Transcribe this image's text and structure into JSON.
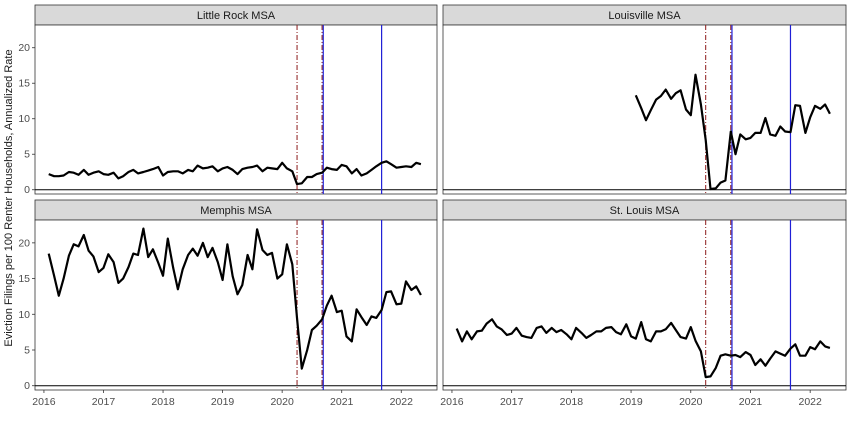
{
  "chart_data": {
    "type": "line",
    "ylabel": "Eviction Filings per 100 Renter Households, Annualized Rate",
    "xlabel": "",
    "xlim": [
      2015.85,
      2022.6
    ],
    "ylim": [
      -0.6,
      23.2
    ],
    "x_ticks": [
      2016,
      2017,
      2018,
      2019,
      2020,
      2021,
      2022
    ],
    "x_tick_labels": [
      "2016",
      "2017",
      "2018",
      "2019",
      "2020",
      "2021",
      "2022"
    ],
    "y_ticks": [
      0,
      5,
      10,
      15,
      20
    ],
    "y_tick_labels": [
      "0",
      "5",
      "10",
      "15",
      "20"
    ],
    "reference_lines": {
      "red_dashdot": [
        2020.25,
        2020.67
      ],
      "blue_solid": [
        2020.69,
        2021.67
      ]
    },
    "colors": {
      "series": "#000000",
      "red_line": "#8b1a1a",
      "blue_line": "#1f1fd6",
      "strip": "#d9d9d9"
    },
    "panels": [
      {
        "title": "Little Rock MSA",
        "x": [
          2016.08,
          2016.17,
          2016.25,
          2016.33,
          2016.42,
          2016.5,
          2016.58,
          2016.67,
          2016.75,
          2016.83,
          2016.92,
          2017.0,
          2017.08,
          2017.17,
          2017.25,
          2017.33,
          2017.42,
          2017.5,
          2017.58,
          2017.67,
          2017.75,
          2017.83,
          2017.92,
          2018.0,
          2018.08,
          2018.17,
          2018.25,
          2018.33,
          2018.42,
          2018.5,
          2018.58,
          2018.67,
          2018.75,
          2018.83,
          2018.92,
          2019.0,
          2019.08,
          2019.17,
          2019.25,
          2019.33,
          2019.42,
          2019.5,
          2019.58,
          2019.67,
          2019.75,
          2019.83,
          2019.92,
          2020.0,
          2020.08,
          2020.17,
          2020.25,
          2020.33,
          2020.42,
          2020.5,
          2020.58,
          2020.67,
          2020.75,
          2020.83,
          2020.92,
          2021.0,
          2021.08,
          2021.17,
          2021.25,
          2021.33,
          2021.42,
          2021.5,
          2021.58,
          2021.67,
          2021.75,
          2021.83,
          2021.92,
          2022.0,
          2022.08,
          2022.17,
          2022.25,
          2022.33
        ],
        "y": [
          2.2,
          1.9,
          1.9,
          2.0,
          2.5,
          2.4,
          2.1,
          2.8,
          2.1,
          2.4,
          2.6,
          2.2,
          2.1,
          2.4,
          1.6,
          1.9,
          2.5,
          2.8,
          2.3,
          2.5,
          2.7,
          2.9,
          3.2,
          2.0,
          2.5,
          2.6,
          2.6,
          2.3,
          2.8,
          2.6,
          3.4,
          3.0,
          3.1,
          3.3,
          2.6,
          3.0,
          3.2,
          2.8,
          2.2,
          2.9,
          3.1,
          3.2,
          3.4,
          2.6,
          3.1,
          3.0,
          2.9,
          3.8,
          3.0,
          2.6,
          0.8,
          0.9,
          1.8,
          1.8,
          2.2,
          2.4,
          3.1,
          2.9,
          2.8,
          3.5,
          3.3,
          2.3,
          2.9,
          2.0,
          2.3,
          2.8,
          3.3,
          3.8,
          4.0,
          3.6,
          3.1,
          3.2,
          3.3,
          3.2,
          3.8,
          3.6
        ]
      },
      {
        "title": "Louisville MSA",
        "x": [
          2019.08,
          2019.17,
          2019.25,
          2019.33,
          2019.42,
          2019.5,
          2019.58,
          2019.67,
          2019.75,
          2019.83,
          2019.92,
          2020.0,
          2020.08,
          2020.17,
          2020.25,
          2020.33,
          2020.42,
          2020.5,
          2020.58,
          2020.67,
          2020.75,
          2020.83,
          2020.92,
          2021.0,
          2021.08,
          2021.17,
          2021.25,
          2021.33,
          2021.42,
          2021.5,
          2021.58,
          2021.67,
          2021.75,
          2021.83,
          2021.92,
          2022.0,
          2022.08,
          2022.17,
          2022.25,
          2022.33
        ],
        "y": [
          13.3,
          11.5,
          9.8,
          11.2,
          12.7,
          13.2,
          14.1,
          12.8,
          13.6,
          14.0,
          11.3,
          10.5,
          16.2,
          12.0,
          7.0,
          0.1,
          0.2,
          1.0,
          1.3,
          8.2,
          5.0,
          7.8,
          7.1,
          7.3,
          8.0,
          8.0,
          10.1,
          7.8,
          7.6,
          8.9,
          8.2,
          8.1,
          11.9,
          11.8,
          8.0,
          10.2,
          11.8,
          11.4,
          12.0,
          10.7
        ]
      },
      {
        "title": "Memphis MSA",
        "x": [
          2016.08,
          2016.17,
          2016.25,
          2016.33,
          2016.42,
          2016.5,
          2016.58,
          2016.67,
          2016.75,
          2016.83,
          2016.92,
          2017.0,
          2017.08,
          2017.17,
          2017.25,
          2017.33,
          2017.42,
          2017.5,
          2017.58,
          2017.67,
          2017.75,
          2017.83,
          2017.92,
          2018.0,
          2018.08,
          2018.17,
          2018.25,
          2018.33,
          2018.42,
          2018.5,
          2018.58,
          2018.67,
          2018.75,
          2018.83,
          2018.92,
          2019.0,
          2019.08,
          2019.17,
          2019.25,
          2019.33,
          2019.42,
          2019.5,
          2019.58,
          2019.67,
          2019.75,
          2019.83,
          2019.92,
          2020.0,
          2020.08,
          2020.17,
          2020.25,
          2020.33,
          2020.42,
          2020.5,
          2020.58,
          2020.67,
          2020.75,
          2020.83,
          2020.92,
          2021.0,
          2021.08,
          2021.17,
          2021.25,
          2021.33,
          2021.42,
          2021.5,
          2021.58,
          2021.67,
          2021.75,
          2021.83,
          2021.92,
          2022.0,
          2022.08,
          2022.17,
          2022.25,
          2022.33
        ],
        "y": [
          18.5,
          15.4,
          12.6,
          15.0,
          18.2,
          19.8,
          19.5,
          21.1,
          18.9,
          18.1,
          15.9,
          16.5,
          18.4,
          17.3,
          14.4,
          15.0,
          16.6,
          18.5,
          18.3,
          22.0,
          18.0,
          19.1,
          17.2,
          15.4,
          20.6,
          16.5,
          13.5,
          16.3,
          18.3,
          19.2,
          18.2,
          20.0,
          18.0,
          19.3,
          17.3,
          14.8,
          19.8,
          15.3,
          12.8,
          14.1,
          18.3,
          16.3,
          21.9,
          19.0,
          18.3,
          18.6,
          15.0,
          15.6,
          19.8,
          17.0,
          9.5,
          2.4,
          5.0,
          7.8,
          8.4,
          9.3,
          11.2,
          12.6,
          10.3,
          10.5,
          6.9,
          6.2,
          10.7,
          9.6,
          8.5,
          9.7,
          9.5,
          10.6,
          13.1,
          13.2,
          11.4,
          11.5,
          14.6,
          13.4,
          13.9,
          12.7
        ]
      },
      {
        "title": "St. Louis MSA",
        "x": [
          2016.08,
          2016.17,
          2016.25,
          2016.33,
          2016.42,
          2016.5,
          2016.58,
          2016.67,
          2016.75,
          2016.83,
          2016.92,
          2017.0,
          2017.08,
          2017.17,
          2017.25,
          2017.33,
          2017.42,
          2017.5,
          2017.58,
          2017.67,
          2017.75,
          2017.83,
          2017.92,
          2018.0,
          2018.08,
          2018.17,
          2018.25,
          2018.33,
          2018.42,
          2018.5,
          2018.58,
          2018.67,
          2018.75,
          2018.83,
          2018.92,
          2019.0,
          2019.08,
          2019.17,
          2019.25,
          2019.33,
          2019.42,
          2019.5,
          2019.58,
          2019.67,
          2019.75,
          2019.83,
          2019.92,
          2020.0,
          2020.08,
          2020.17,
          2020.25,
          2020.33,
          2020.42,
          2020.5,
          2020.58,
          2020.67,
          2020.75,
          2020.83,
          2020.92,
          2021.0,
          2021.08,
          2021.17,
          2021.25,
          2021.33,
          2021.42,
          2021.5,
          2021.58,
          2021.67,
          2021.75,
          2021.83,
          2021.92,
          2022.0,
          2022.08,
          2022.17,
          2022.25,
          2022.33
        ],
        "y": [
          8.0,
          6.2,
          7.6,
          6.5,
          7.6,
          7.7,
          8.7,
          9.3,
          8.3,
          7.9,
          7.1,
          7.3,
          8.1,
          7.0,
          6.8,
          6.7,
          8.1,
          8.3,
          7.4,
          8.1,
          7.5,
          7.8,
          7.2,
          6.5,
          8.1,
          7.4,
          6.7,
          7.1,
          7.6,
          7.6,
          8.1,
          8.2,
          7.5,
          7.2,
          8.6,
          6.9,
          6.6,
          8.9,
          6.5,
          6.2,
          7.6,
          7.6,
          7.9,
          8.8,
          7.8,
          6.8,
          6.6,
          8.2,
          6.3,
          4.8,
          1.2,
          1.3,
          2.5,
          4.2,
          4.4,
          4.2,
          4.3,
          4.0,
          4.7,
          4.3,
          2.9,
          3.7,
          2.8,
          3.8,
          4.8,
          4.5,
          4.2,
          5.2,
          5.8,
          4.2,
          4.2,
          5.4,
          5.1,
          6.2,
          5.5,
          5.3
        ]
      }
    ]
  }
}
